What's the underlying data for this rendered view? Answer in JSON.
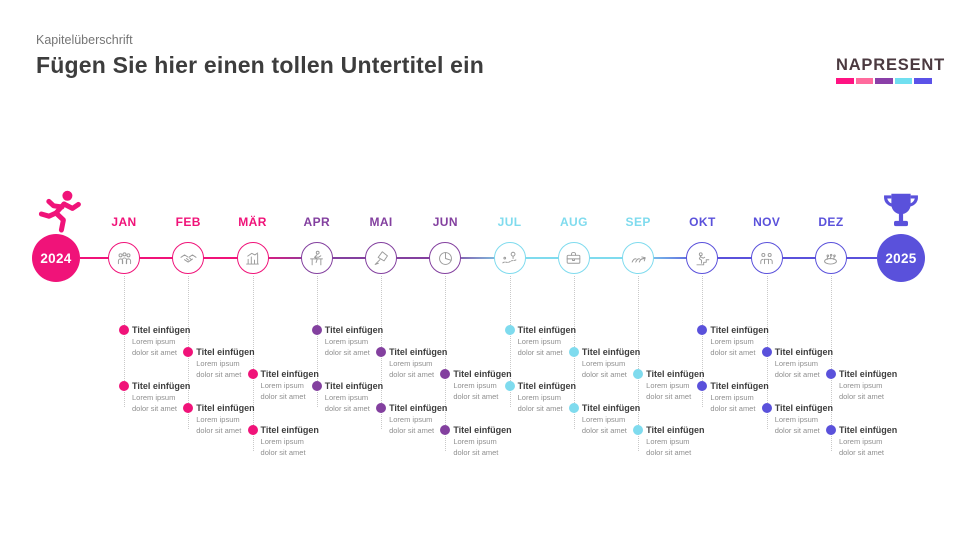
{
  "header": {
    "eyebrow": "Kapitelüberschrift",
    "title": "Fügen Sie hier einen tollen Untertitel ein"
  },
  "logo": {
    "text": "NAPRESENT",
    "bar_colors": [
      "#FF1382",
      "#FF6B9D",
      "#8A3FA8",
      "#70DFF0",
      "#5B52E8"
    ]
  },
  "timeline": {
    "start": {
      "year": "2024",
      "color": "#F01379",
      "icon": "runner-icon"
    },
    "end": {
      "year": "2025",
      "color": "#5A51DB",
      "icon": "trophy-icon"
    },
    "months": [
      {
        "label": "JAN",
        "color": "#F01379",
        "icon": "team-icon",
        "slot": "a",
        "entries": [
          {
            "title": "Titel einfügen",
            "line1": "Lorem ipsum",
            "line2": "dolor sit amet"
          },
          {
            "title": "Titel einfügen",
            "line1": "Lorem ipsum",
            "line2": "dolor sit amet"
          }
        ]
      },
      {
        "label": "FEB",
        "color": "#F01379",
        "icon": "handshake-icon",
        "slot": "b",
        "entries": [
          {
            "title": "Titel einfügen",
            "line1": "Lorem ipsum",
            "line2": "dolor sit amet"
          },
          {
            "title": "Titel einfügen",
            "line1": "Lorem ipsum",
            "line2": "dolor sit amet"
          }
        ]
      },
      {
        "label": "MÄR",
        "color": "#F01379",
        "icon": "bar-chart-icon",
        "slot": "c",
        "entries": [
          {
            "title": "Titel einfügen",
            "line1": "Lorem ipsum",
            "line2": "dolor sit amet"
          },
          {
            "title": "Titel einfügen",
            "line1": "Lorem ipsum",
            "line2": "dolor sit amet"
          }
        ]
      },
      {
        "label": "APR",
        "color": "#83409F",
        "icon": "hurdle-icon",
        "slot": "a",
        "entries": [
          {
            "title": "Titel einfügen",
            "line1": "Lorem ipsum",
            "line2": "dolor sit amet"
          },
          {
            "title": "Titel einfügen",
            "line1": "Lorem ipsum",
            "line2": "dolor sit amet"
          }
        ]
      },
      {
        "label": "MAI",
        "color": "#83409F",
        "icon": "kite-icon",
        "slot": "b",
        "entries": [
          {
            "title": "Titel einfügen",
            "line1": "Lorem ipsum",
            "line2": "dolor sit amet"
          },
          {
            "title": "Titel einfügen",
            "line1": "Lorem ipsum",
            "line2": "dolor sit amet"
          }
        ]
      },
      {
        "label": "JUN",
        "color": "#83409F",
        "icon": "pie-chart-icon",
        "slot": "c",
        "entries": [
          {
            "title": "Titel einfügen",
            "line1": "Lorem ipsum",
            "line2": "dolor sit amet"
          },
          {
            "title": "Titel einfügen",
            "line1": "Lorem ipsum",
            "line2": "dolor sit amet"
          }
        ]
      },
      {
        "label": "JUL",
        "color": "#7FDBEE",
        "icon": "map-route-icon",
        "slot": "a",
        "entries": [
          {
            "title": "Titel einfügen",
            "line1": "Lorem ipsum",
            "line2": "dolor sit amet"
          },
          {
            "title": "Titel einfügen",
            "line1": "Lorem ipsum",
            "line2": "dolor sit amet"
          }
        ]
      },
      {
        "label": "AUG",
        "color": "#7FDBEE",
        "icon": "briefcase-icon",
        "slot": "b",
        "entries": [
          {
            "title": "Titel einfügen",
            "line1": "Lorem ipsum",
            "line2": "dolor sit amet"
          },
          {
            "title": "Titel einfügen",
            "line1": "Lorem ipsum",
            "line2": "dolor sit amet"
          }
        ]
      },
      {
        "label": "SEP",
        "color": "#7FDBEE",
        "icon": "teamwork-icon",
        "slot": "c",
        "entries": [
          {
            "title": "Titel einfügen",
            "line1": "Lorem ipsum",
            "line2": "dolor sit amet"
          },
          {
            "title": "Titel einfügen",
            "line1": "Lorem ipsum",
            "line2": "dolor sit amet"
          }
        ]
      },
      {
        "label": "OKT",
        "color": "#5A51DB",
        "icon": "climbing-icon",
        "slot": "a",
        "entries": [
          {
            "title": "Titel einfügen",
            "line1": "Lorem ipsum",
            "line2": "dolor sit amet"
          },
          {
            "title": "Titel einfügen",
            "line1": "Lorem ipsum",
            "line2": "dolor sit amet"
          }
        ]
      },
      {
        "label": "NOV",
        "color": "#5A51DB",
        "icon": "meeting-icon",
        "slot": "b",
        "entries": [
          {
            "title": "Titel einfügen",
            "line1": "Lorem ipsum",
            "line2": "dolor sit amet"
          },
          {
            "title": "Titel einfügen",
            "line1": "Lorem ipsum",
            "line2": "dolor sit amet"
          }
        ]
      },
      {
        "label": "DEZ",
        "color": "#5A51DB",
        "icon": "celebration-icon",
        "slot": "c",
        "entries": [
          {
            "title": "Titel einfügen",
            "line1": "Lorem ipsum",
            "line2": "dolor sit amet"
          },
          {
            "title": "Titel einfügen",
            "line1": "Lorem ipsum",
            "line2": "dolor sit amet"
          }
        ]
      }
    ]
  }
}
